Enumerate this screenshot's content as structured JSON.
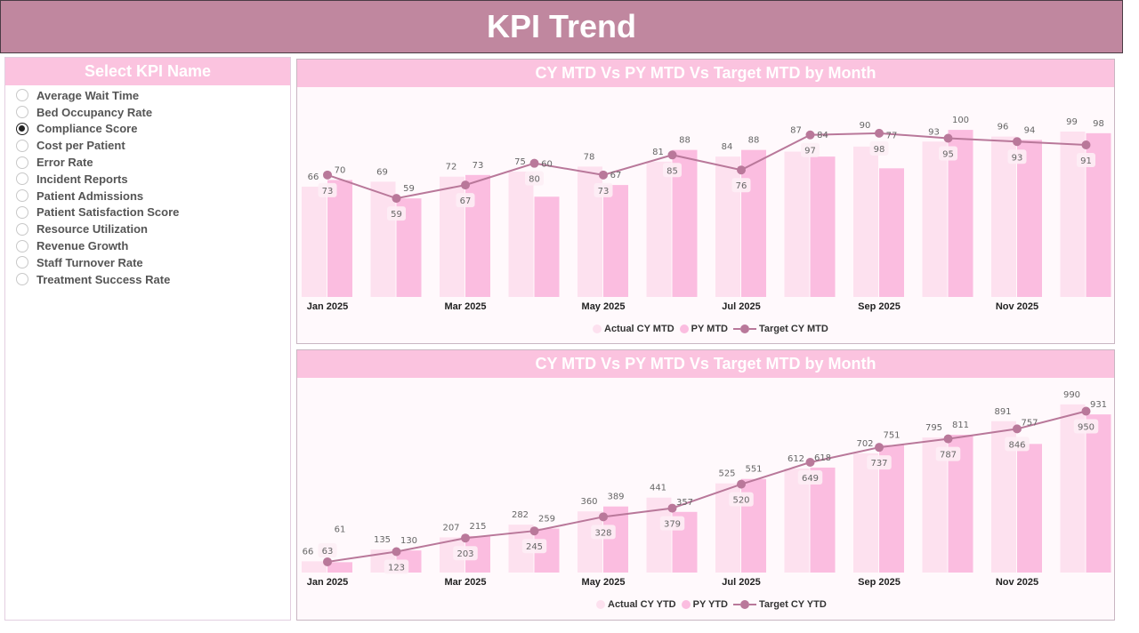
{
  "header": {
    "title": "KPI Trend"
  },
  "slicer": {
    "title": "Select KPI Name",
    "selected": "Compliance Score",
    "items": [
      "Average Wait Time",
      "Bed Occupancy Rate",
      "Compliance Score",
      "Cost per Patient",
      "Error Rate",
      "Incident Reports",
      "Patient Admissions",
      "Patient Satisfaction Score",
      "Resource Utilization",
      "Revenue Growth",
      "Staff Turnover Rate",
      "Treatment Success Rate"
    ]
  },
  "colors": {
    "header": "#c0879f",
    "section_header": "#fbc3df",
    "actual": "#fde1ef",
    "py": "#fbbde0",
    "target": "#b9789a"
  },
  "chart_data": [
    {
      "type": "bar",
      "title": "CY MTD Vs PY MTD Vs Target MTD by Month",
      "x_ticks": [
        "Jan 2025",
        "Mar 2025",
        "May 2025",
        "Jul 2025",
        "Sep 2025",
        "Nov 2025"
      ],
      "ylim": [
        0,
        124
      ],
      "grid": false,
      "legend_position": "bottom-right",
      "series": [
        {
          "name": "Actual CY MTD",
          "kind": "bar",
          "values": [
            66,
            69,
            72,
            75,
            78,
            81,
            84,
            87,
            90,
            93,
            96,
            99
          ]
        },
        {
          "name": "PY MTD",
          "kind": "bar",
          "values": [
            70,
            59,
            73,
            60,
            67,
            88,
            88,
            84,
            77,
            100,
            94,
            98
          ]
        },
        {
          "name": "Target CY MTD",
          "kind": "line",
          "values": [
            73,
            59,
            67,
            80,
            73,
            85,
            76,
            97,
            98,
            95,
            93,
            91
          ]
        }
      ]
    },
    {
      "type": "bar",
      "title": "CY MTD Vs PY MTD Vs Target MTD by Month",
      "x_ticks": [
        "Jan 2025",
        "Mar 2025",
        "May 2025",
        "Jul 2025",
        "Sep 2025",
        "Nov 2025"
      ],
      "ylim": [
        0,
        1120
      ],
      "grid": false,
      "legend_position": "bottom-right",
      "series": [
        {
          "name": "Actual CY YTD",
          "kind": "bar",
          "values": [
            66,
            135,
            207,
            282,
            360,
            441,
            525,
            612,
            702,
            795,
            891,
            990
          ]
        },
        {
          "name": "PY YTD",
          "kind": "bar",
          "values": [
            61,
            130,
            215,
            259,
            389,
            357,
            551,
            618,
            751,
            811,
            757,
            931
          ]
        },
        {
          "name": "Target CY YTD",
          "kind": "line",
          "values": [
            63,
            123,
            203,
            245,
            328,
            379,
            520,
            649,
            737,
            787,
            846,
            950
          ]
        }
      ]
    }
  ]
}
